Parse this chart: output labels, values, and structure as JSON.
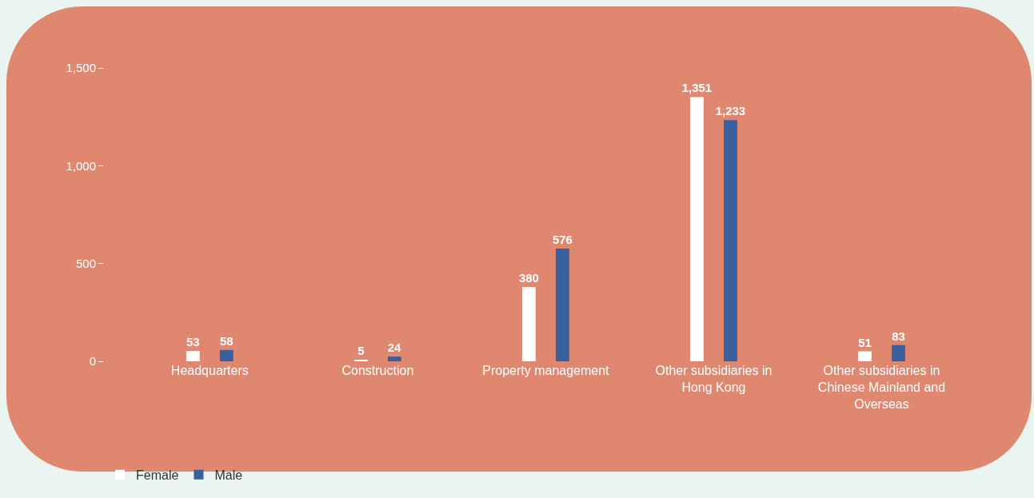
{
  "chart_data": {
    "type": "bar",
    "categories": [
      "Headquarters",
      "Construction",
      "Property management",
      "Other subsidiaries in Hong Kong",
      "Other subsidiaries in Chinese Mainland and Overseas"
    ],
    "series": [
      {
        "name": "Female",
        "color": "#ffffff",
        "values": [
          53,
          5,
          380,
          1351,
          51
        ],
        "value_labels": [
          "53",
          "5",
          "380",
          "1,351",
          "51"
        ]
      },
      {
        "name": "Male",
        "color": "#3a5f9f",
        "values": [
          58,
          24,
          576,
          1233,
          83
        ],
        "value_labels": [
          "58",
          "24",
          "576",
          "1,233",
          "83"
        ]
      }
    ],
    "ylim": [
      0,
      1500
    ],
    "yticks": [
      0,
      {
        "value": 500,
        "label": "500"
      },
      {
        "value": 1000,
        "label": "1,000"
      },
      {
        "value": 1500,
        "label": "1,500"
      }
    ],
    "grid": false,
    "legend": "bottom left"
  }
}
